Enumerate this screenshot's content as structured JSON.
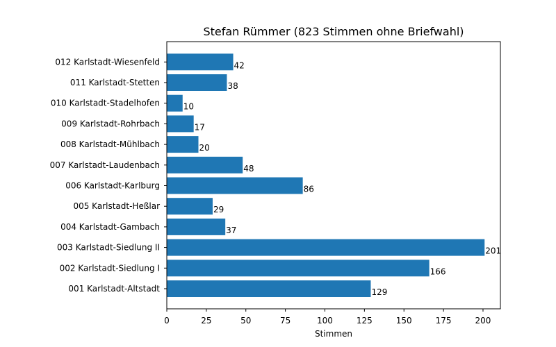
{
  "chart_data": {
    "type": "bar",
    "orientation": "horizontal",
    "title": "Stefan Rümmer (823 Stimmen ohne Briefwahl)",
    "xlabel": "Stimmen",
    "ylabel": "",
    "xlim": [
      0,
      211
    ],
    "xticks": [
      0,
      25,
      50,
      75,
      100,
      125,
      150,
      175,
      200
    ],
    "categories": [
      "001 Karlstadt-Altstadt",
      "002 Karlstadt-Siedlung I",
      "003 Karlstadt-Siedlung II",
      "004 Karlstadt-Gambach",
      "005 Karlstadt-Heßlar",
      "006 Karlstadt-Karlburg",
      "007 Karlstadt-Laudenbach",
      "008 Karlstadt-Mühlbach",
      "009 Karlstadt-Rohrbach",
      "010 Karlstadt-Stadelhofen",
      "011 Karlstadt-Stetten",
      "012 Karlstadt-Wiesenfeld"
    ],
    "values": [
      129,
      166,
      201,
      37,
      29,
      86,
      48,
      20,
      17,
      10,
      38,
      42
    ],
    "bar_color": "#1f77b4",
    "grid": false,
    "legend": "none"
  }
}
